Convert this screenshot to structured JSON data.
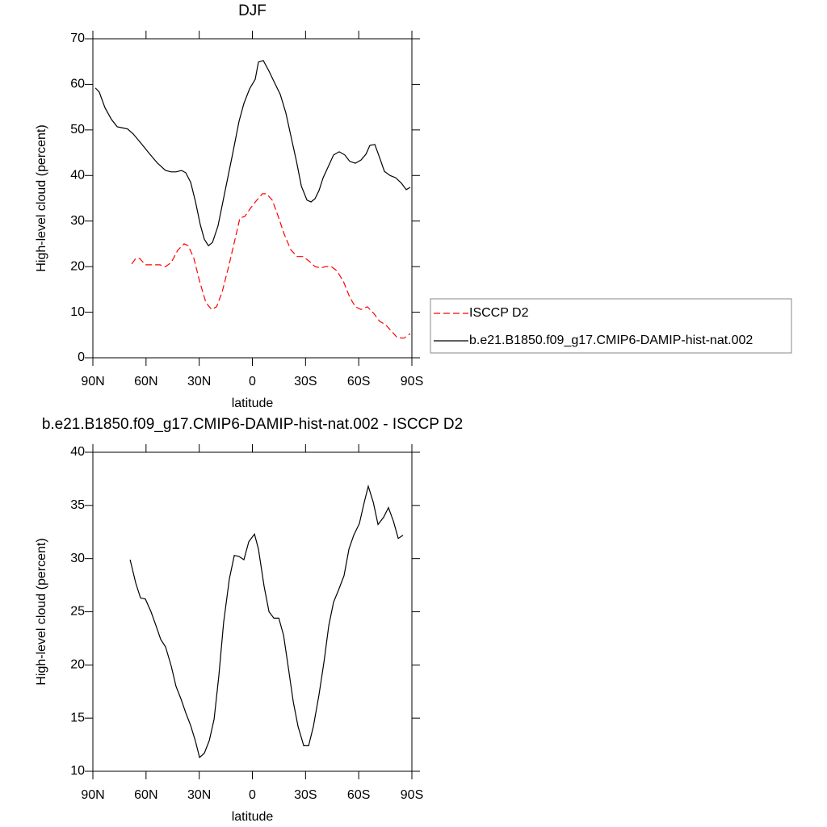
{
  "chart_data": [
    {
      "type": "line",
      "title": "DJF",
      "xlabel": "latitude",
      "ylabel": "High-level cloud (percent)",
      "xlim": [
        90,
        -90
      ],
      "xticks": [
        {
          "value": 90,
          "label": "90N"
        },
        {
          "value": 60,
          "label": "60N"
        },
        {
          "value": 30,
          "label": "30N"
        },
        0,
        {
          "value": -30,
          "label": "30S"
        },
        {
          "value": -60,
          "label": "60S"
        },
        {
          "value": -90,
          "label": "90S"
        }
      ],
      "ylim": [
        0,
        70
      ],
      "yticks": [
        0,
        10,
        20,
        30,
        40,
        50,
        60,
        70
      ],
      "legend": "right",
      "series": [
        {
          "name": "ISCCP D2",
          "color": "#ff0000",
          "dash": true,
          "x": [
            68.1,
            65.8,
            63.6,
            60.4,
            55.8,
            52.2,
            49.0,
            45.8,
            42.1,
            38.5,
            36.2,
            33.0,
            29.8,
            26.2,
            23.0,
            20.2,
            17.1,
            13.4,
            10.2,
            7.0,
            4.3,
            1.1,
            -2.1,
            -5.7,
            -8.0,
            -11.2,
            -14.4,
            -18.0,
            -21.7,
            -25.3,
            -28.5,
            -31.7,
            -35.3,
            -38.5,
            -41.3,
            -44.5,
            -47.6,
            -51.3,
            -54.9,
            -58.1,
            -61.3,
            -64.9,
            -68.6,
            -71.8,
            -75.0,
            -78.6,
            -81.8,
            -85.5,
            -89.1
          ],
          "values": [
            20.6,
            21.8,
            21.8,
            20.4,
            20.4,
            20.4,
            20.0,
            20.9,
            23.6,
            25.0,
            24.6,
            21.8,
            16.8,
            12.1,
            10.6,
            11.2,
            14.4,
            20.0,
            25.3,
            30.7,
            31.0,
            32.8,
            34.4,
            36.0,
            36.0,
            34.6,
            31.2,
            27.1,
            23.7,
            22.2,
            22.2,
            21.3,
            20.0,
            19.7,
            20.0,
            20.0,
            19.1,
            16.8,
            13.3,
            11.2,
            10.6,
            11.2,
            9.7,
            8.0,
            7.3,
            5.8,
            4.4,
            4.3,
            5.3
          ]
        },
        {
          "name": "b.e21.B1850.f09_g17.CMIP6-DAMIP-hist-nat.002",
          "color": "#000000",
          "dash": false,
          "x": [
            88.6,
            86.4,
            83.2,
            79.5,
            76.3,
            74.0,
            70.4,
            67.2,
            62.7,
            58.1,
            53.5,
            49.0,
            45.8,
            43.1,
            39.9,
            37.6,
            34.8,
            32.1,
            29.4,
            27.1,
            24.8,
            22.5,
            19.4,
            15.7,
            11.1,
            7.5,
            4.8,
            1.6,
            -1.6,
            -3.4,
            -6.2,
            -9.4,
            -12.6,
            -15.7,
            -18.9,
            -22.1,
            -24.9,
            -27.6,
            -30.8,
            -33.1,
            -35.3,
            -37.6,
            -39.9,
            -43.1,
            -45.8,
            -49.0,
            -52.2,
            -54.9,
            -58.1,
            -61.3,
            -64.1,
            -66.3,
            -69.1,
            -71.8,
            -74.5,
            -77.7,
            -80.9,
            -84.1,
            -86.8,
            -89.1
          ],
          "values": [
            59.2,
            58.3,
            54.9,
            52.3,
            50.7,
            50.5,
            50.2,
            49.1,
            47.0,
            44.8,
            42.7,
            41.1,
            40.8,
            40.8,
            41.1,
            40.6,
            38.5,
            34.2,
            29.2,
            26.0,
            24.6,
            25.3,
            28.9,
            36.0,
            44.8,
            51.9,
            55.8,
            59.0,
            61.1,
            64.9,
            65.2,
            62.9,
            60.3,
            57.8,
            53.7,
            48.0,
            43.1,
            37.7,
            34.6,
            34.2,
            34.9,
            36.7,
            39.5,
            42.2,
            44.5,
            45.2,
            44.5,
            43.1,
            42.7,
            43.4,
            44.7,
            46.6,
            46.8,
            43.9,
            40.9,
            40.0,
            39.5,
            38.3,
            36.9,
            37.4
          ]
        }
      ]
    },
    {
      "type": "line",
      "title": "b.e21.B1850.f09_g17.CMIP6-DAMIP-hist-nat.002 - ISCCP D2",
      "xlabel": "latitude",
      "ylabel": "High-level cloud (percent)",
      "xlim": [
        90,
        -90
      ],
      "xticks": [
        {
          "value": 90,
          "label": "90N"
        },
        {
          "value": 60,
          "label": "60N"
        },
        {
          "value": 30,
          "label": "30N"
        },
        0,
        {
          "value": -30,
          "label": "30S"
        },
        {
          "value": -60,
          "label": "60S"
        },
        {
          "value": -90,
          "label": "90S"
        }
      ],
      "ylim": [
        10,
        40
      ],
      "yticks": [
        10,
        15,
        20,
        25,
        30,
        35,
        40
      ],
      "series": [
        {
          "color": "#000000",
          "dash": false,
          "x": [
            69.0,
            65.8,
            63.1,
            60.4,
            57.2,
            54.4,
            51.7,
            49.0,
            45.8,
            43.1,
            40.3,
            37.6,
            34.8,
            32.1,
            29.8,
            27.1,
            24.3,
            21.6,
            18.9,
            16.2,
            13.0,
            10.2,
            7.5,
            4.8,
            2.0,
            -1.2,
            -3.4,
            -6.6,
            -9.4,
            -12.1,
            -14.9,
            -17.6,
            -20.4,
            -23.1,
            -25.8,
            -29.0,
            -31.7,
            -34.4,
            -37.6,
            -40.4,
            -43.1,
            -45.8,
            -49.0,
            -51.7,
            -54.5,
            -57.2,
            -60.4,
            -63.1,
            -65.4,
            -68.2,
            -70.9,
            -74.1,
            -76.8,
            -79.6,
            -82.3,
            -85.0
          ],
          "values": [
            29.9,
            27.7,
            26.3,
            26.2,
            25.0,
            23.7,
            22.4,
            21.7,
            19.9,
            18.0,
            16.8,
            15.5,
            14.3,
            12.8,
            11.3,
            11.7,
            12.9,
            14.9,
            19.0,
            24.0,
            28.1,
            30.3,
            30.2,
            29.9,
            31.6,
            32.3,
            30.9,
            27.4,
            25.0,
            24.4,
            24.4,
            22.8,
            19.6,
            16.5,
            14.2,
            12.4,
            12.4,
            14.2,
            17.2,
            20.3,
            23.7,
            25.9,
            27.2,
            28.4,
            30.9,
            32.2,
            33.3,
            35.3,
            36.8,
            35.3,
            33.2,
            33.9,
            34.8,
            33.5,
            31.9,
            32.2
          ]
        }
      ]
    }
  ]
}
